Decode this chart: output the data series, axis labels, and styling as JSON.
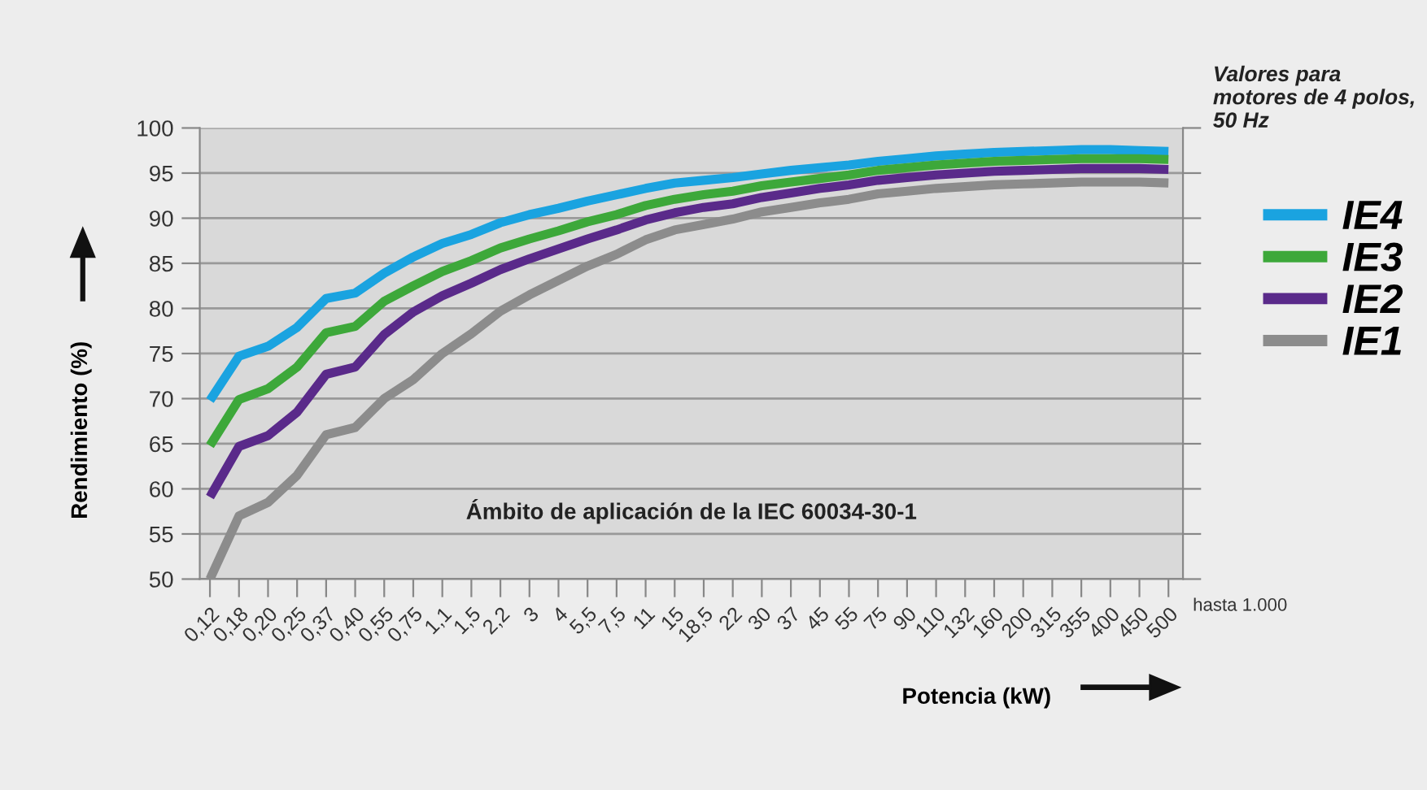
{
  "chart_data": {
    "type": "line",
    "xlabel": "Potencia (kW)",
    "ylabel": "Rendimiento (%)",
    "categories": [
      "0,12",
      "0,18",
      "0,20",
      "0,25",
      "0,37",
      "0,40",
      "0,55",
      "0,75",
      "1,1",
      "1,5",
      "2,2",
      "3",
      "4",
      "5,5",
      "7,5",
      "11",
      "15",
      "18,5",
      "22",
      "30",
      "37",
      "45",
      "55",
      "75",
      "90",
      "110",
      "132",
      "160",
      "200",
      "315",
      "355",
      "400",
      "450",
      "500"
    ],
    "series": [
      {
        "name": "IE4",
        "color": "#1aa3e0",
        "values": [
          69.8,
          74.7,
          75.8,
          77.9,
          81.1,
          81.7,
          83.9,
          85.7,
          87.2,
          88.2,
          89.5,
          90.4,
          91.1,
          91.9,
          92.6,
          93.3,
          93.9,
          94.2,
          94.5,
          94.9,
          95.3,
          95.6,
          95.9,
          96.3,
          96.6,
          96.9,
          97.1,
          97.3,
          97.4,
          97.5,
          97.6,
          97.6,
          97.5,
          97.4
        ]
      },
      {
        "name": "IE3",
        "color": "#3da83a",
        "values": [
          64.8,
          69.9,
          71.1,
          73.5,
          77.3,
          78.0,
          80.8,
          82.5,
          84.1,
          85.3,
          86.7,
          87.7,
          88.6,
          89.6,
          90.4,
          91.4,
          92.1,
          92.6,
          93.0,
          93.6,
          94.0,
          94.4,
          94.8,
          95.3,
          95.6,
          95.9,
          96.1,
          96.3,
          96.4,
          96.5,
          96.6,
          96.6,
          96.6,
          96.5
        ]
      },
      {
        "name": "IE2",
        "color": "#5a2a8a",
        "values": [
          59.1,
          64.7,
          65.9,
          68.5,
          72.7,
          73.5,
          77.1,
          79.6,
          81.4,
          82.8,
          84.3,
          85.5,
          86.6,
          87.7,
          88.7,
          89.8,
          90.6,
          91.2,
          91.6,
          92.3,
          92.8,
          93.3,
          93.7,
          94.2,
          94.5,
          94.8,
          95.0,
          95.2,
          95.3,
          95.4,
          95.5,
          95.5,
          95.5,
          95.4
        ]
      },
      {
        "name": "IE1",
        "color": "#8c8c8c",
        "values": [
          50.0,
          57.0,
          58.5,
          61.5,
          66.0,
          66.8,
          70.0,
          72.1,
          75.0,
          77.2,
          79.7,
          81.5,
          83.1,
          84.7,
          86.0,
          87.6,
          88.7,
          89.3,
          89.9,
          90.7,
          91.2,
          91.7,
          92.1,
          92.7,
          93.0,
          93.3,
          93.5,
          93.7,
          93.8,
          93.9,
          94.0,
          94.0,
          94.0,
          93.9
        ]
      }
    ],
    "ylim": [
      50,
      100
    ],
    "yticks": [
      50,
      55,
      60,
      65,
      70,
      75,
      80,
      85,
      90,
      95,
      100
    ],
    "grid": "y",
    "legend": "right",
    "marker": "none",
    "line_style": "solid",
    "annotations": [
      "Ámbito de aplicación de la IEC 60034-30-1",
      "Valores para motores de 4 polos, 50 Hz",
      "hasta 1.000"
    ]
  }
}
